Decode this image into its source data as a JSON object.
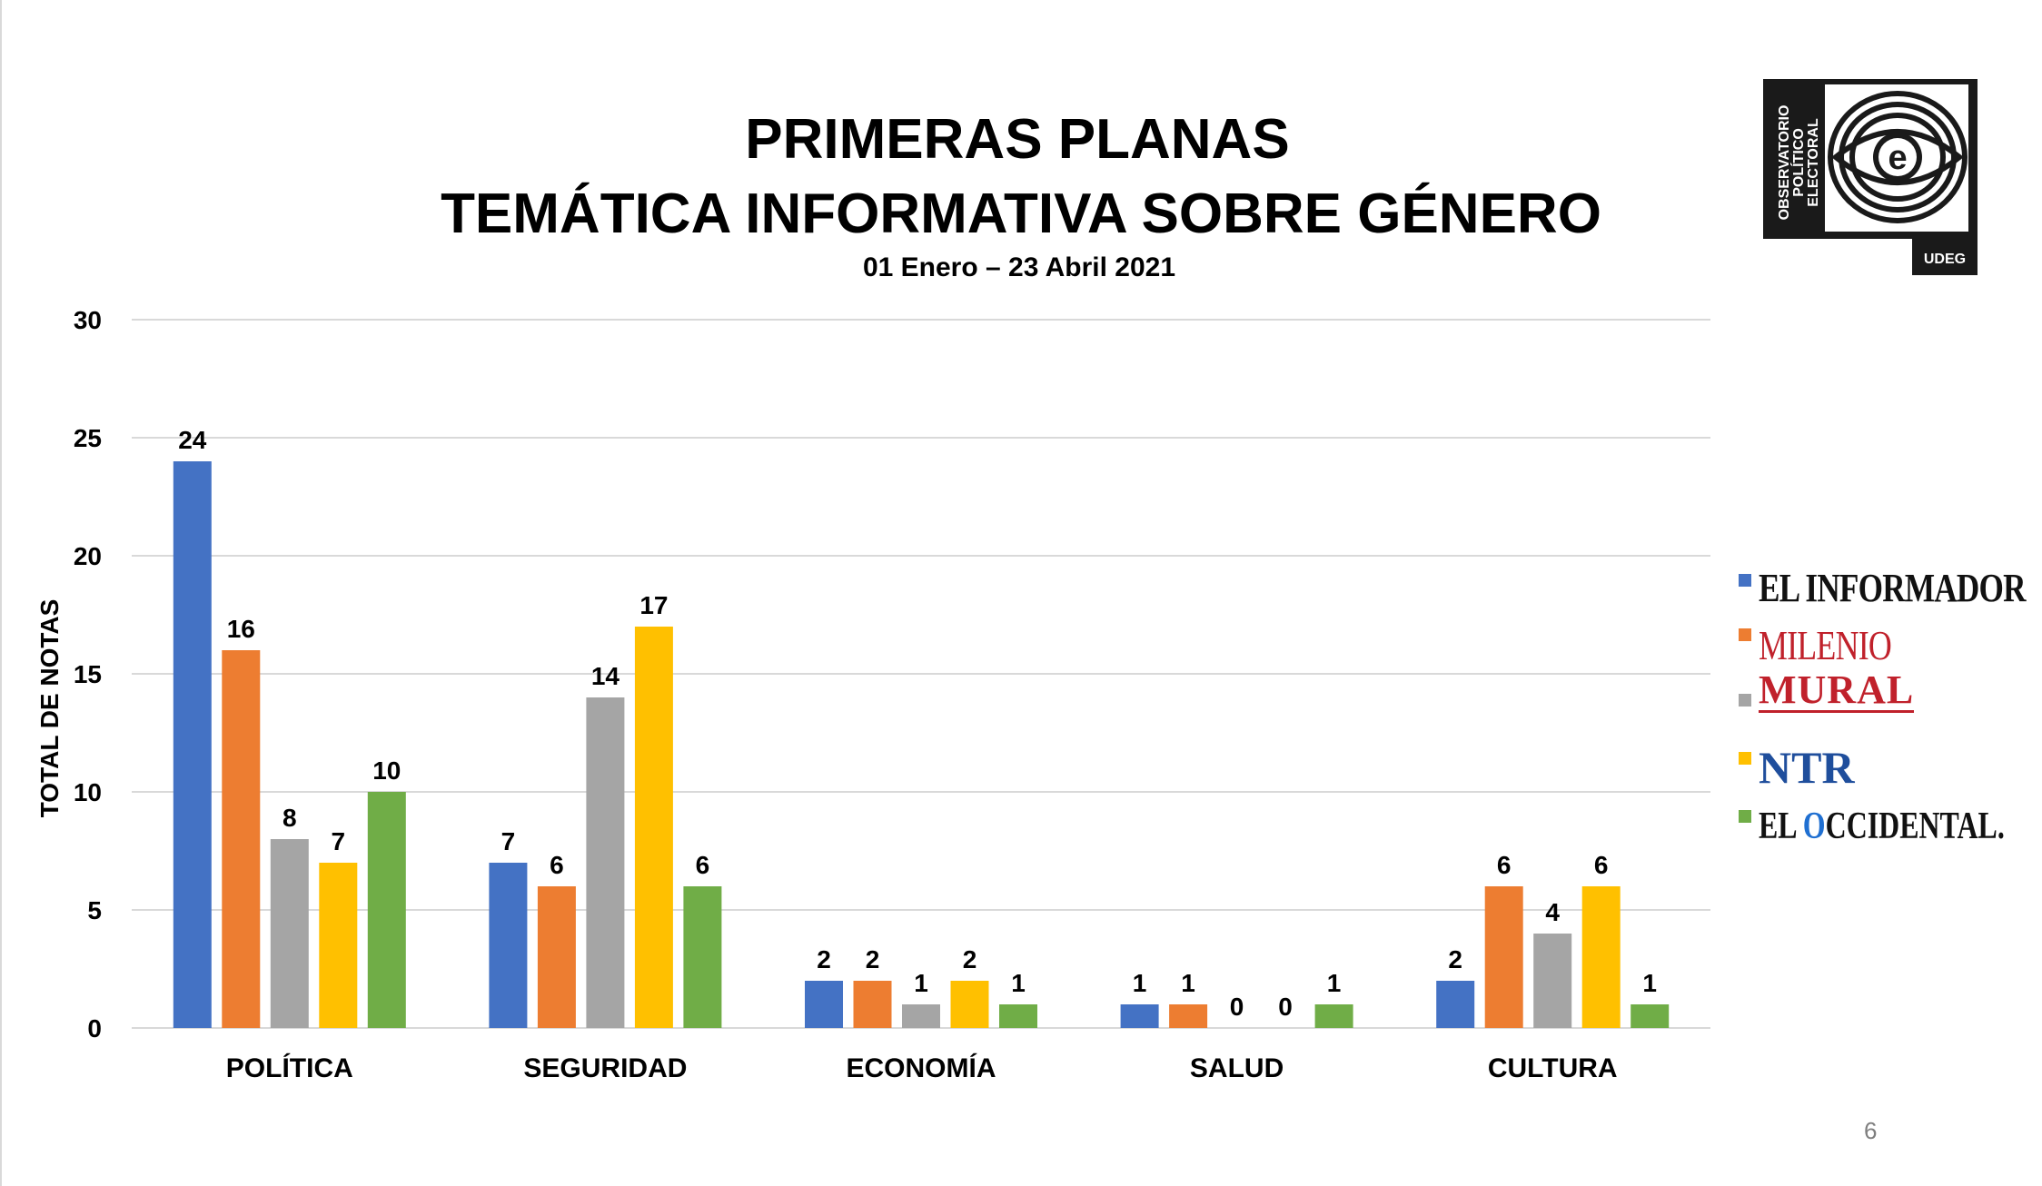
{
  "header": {
    "title_line1": "PRIMERAS PLANAS",
    "title_line2": "TEMÁTICA INFORMATIVA SOBRE GÉNERO",
    "date_range": "01 Enero – 23 Abril 2021"
  },
  "logo": {
    "text_line1": "OBSERVATORIO",
    "text_line2": "POLÍTICO",
    "text_line3": "ELECTORAL",
    "letter": "e",
    "badge": "UDEG",
    "icon": "eye-logo-icon"
  },
  "page_number": "6",
  "legend": [
    {
      "label": "EL INFORMADOR",
      "color": "#4472c4"
    },
    {
      "label": "MILENIO",
      "color": "#ed7d31"
    },
    {
      "label": "MURAL",
      "color": "#a5a5a5"
    },
    {
      "label": "NTR",
      "color": "#ffc000"
    },
    {
      "label_prefix": "EL ",
      "label_o": "O",
      "label_rest": "CCIDENTAL",
      "label_suffix": ".",
      "color": "#70ad47"
    }
  ],
  "chart_data": {
    "type": "bar",
    "title": "PRIMERAS PLANAS — TEMÁTICA INFORMATIVA SOBRE GÉNERO",
    "xlabel": "",
    "ylabel": "TOTAL DE NOTAS",
    "ylim": [
      0,
      30
    ],
    "yticks": [
      0,
      5,
      10,
      15,
      20,
      25,
      30
    ],
    "grid": true,
    "legend_position": "right",
    "categories": [
      "POLÍTICA",
      "SEGURIDAD",
      "ECONOMÍA",
      "SALUD",
      "CULTURA"
    ],
    "series": [
      {
        "name": "EL INFORMADOR",
        "color": "#4472c4",
        "values": [
          24,
          7,
          2,
          1,
          2
        ]
      },
      {
        "name": "MILENIO",
        "color": "#ed7d31",
        "values": [
          16,
          6,
          2,
          1,
          6
        ]
      },
      {
        "name": "MURAL",
        "color": "#a5a5a5",
        "values": [
          8,
          14,
          1,
          0,
          4
        ]
      },
      {
        "name": "NTR",
        "color": "#ffc000",
        "values": [
          7,
          17,
          2,
          0,
          6
        ]
      },
      {
        "name": "EL OCCIDENTAL",
        "color": "#70ad47",
        "values": [
          10,
          6,
          1,
          1,
          1
        ]
      }
    ]
  }
}
